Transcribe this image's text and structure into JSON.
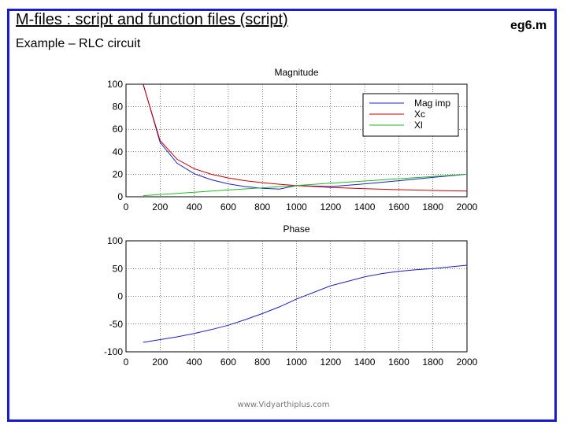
{
  "slide": {
    "title": "M-files : script and function files (script)",
    "tag": "eg6.m",
    "subtitle": "Example – RLC circuit",
    "footer": "www.Vidyarthiplus.com"
  },
  "colors": {
    "frame": "#1a1ad0",
    "mag_imp": "#1f1fc8",
    "xc": "#cc0000",
    "xl": "#22bb22",
    "phase": "#1f1fc8"
  },
  "chart_data": [
    {
      "type": "line",
      "title": "Magnitude",
      "xlabel": "",
      "ylabel": "",
      "xlim": [
        0,
        2000
      ],
      "ylim": [
        0,
        100
      ],
      "xticks": [
        0,
        200,
        400,
        600,
        800,
        1000,
        1200,
        1400,
        1600,
        1800,
        2000
      ],
      "yticks": [
        0,
        20,
        40,
        60,
        80,
        100
      ],
      "grid": true,
      "legend": "top-right",
      "x": [
        100,
        200,
        300,
        400,
        500,
        600,
        700,
        800,
        900,
        1000,
        1200,
        1400,
        1600,
        1800,
        2000
      ],
      "series": [
        {
          "name": "Mag imp",
          "color_key": "mag_imp",
          "values": [
            100.5,
            48.3,
            29.8,
            20.5,
            15.1,
            11.5,
            9.0,
            7.5,
            6.8,
            10.0,
            9.0,
            11.5,
            14.3,
            17.2,
            20.0
          ]
        },
        {
          "name": "Xc",
          "color_key": "xc",
          "values": [
            100,
            50,
            33.3,
            25,
            20,
            16.7,
            14.3,
            12.5,
            11.1,
            10,
            8.3,
            7.1,
            6.3,
            5.6,
            5
          ]
        },
        {
          "name": "Xl",
          "color_key": "xl",
          "values": [
            1,
            2,
            3,
            4,
            5,
            6,
            7,
            8,
            9,
            10,
            12,
            14,
            16,
            18,
            20
          ]
        }
      ]
    },
    {
      "type": "line",
      "title": "Phase",
      "xlabel": "",
      "ylabel": "",
      "xlim": [
        0,
        2000
      ],
      "ylim": [
        -100,
        100
      ],
      "xticks": [
        0,
        200,
        400,
        600,
        800,
        1000,
        1200,
        1400,
        1600,
        1800,
        2000
      ],
      "yticks": [
        -100,
        -50,
        0,
        50,
        100
      ],
      "grid": true,
      "x": [
        100,
        200,
        300,
        400,
        500,
        600,
        700,
        800,
        900,
        1000,
        1100,
        1200,
        1300,
        1400,
        1500,
        1600,
        1700,
        1800,
        1900,
        2000
      ],
      "series": [
        {
          "name": "",
          "color_key": "phase",
          "values": [
            -83,
            -78,
            -73,
            -67,
            -60,
            -52,
            -42,
            -31,
            -19,
            -5,
            7,
            19,
            27,
            35,
            41,
            45,
            48,
            50,
            53,
            56
          ]
        }
      ]
    }
  ]
}
